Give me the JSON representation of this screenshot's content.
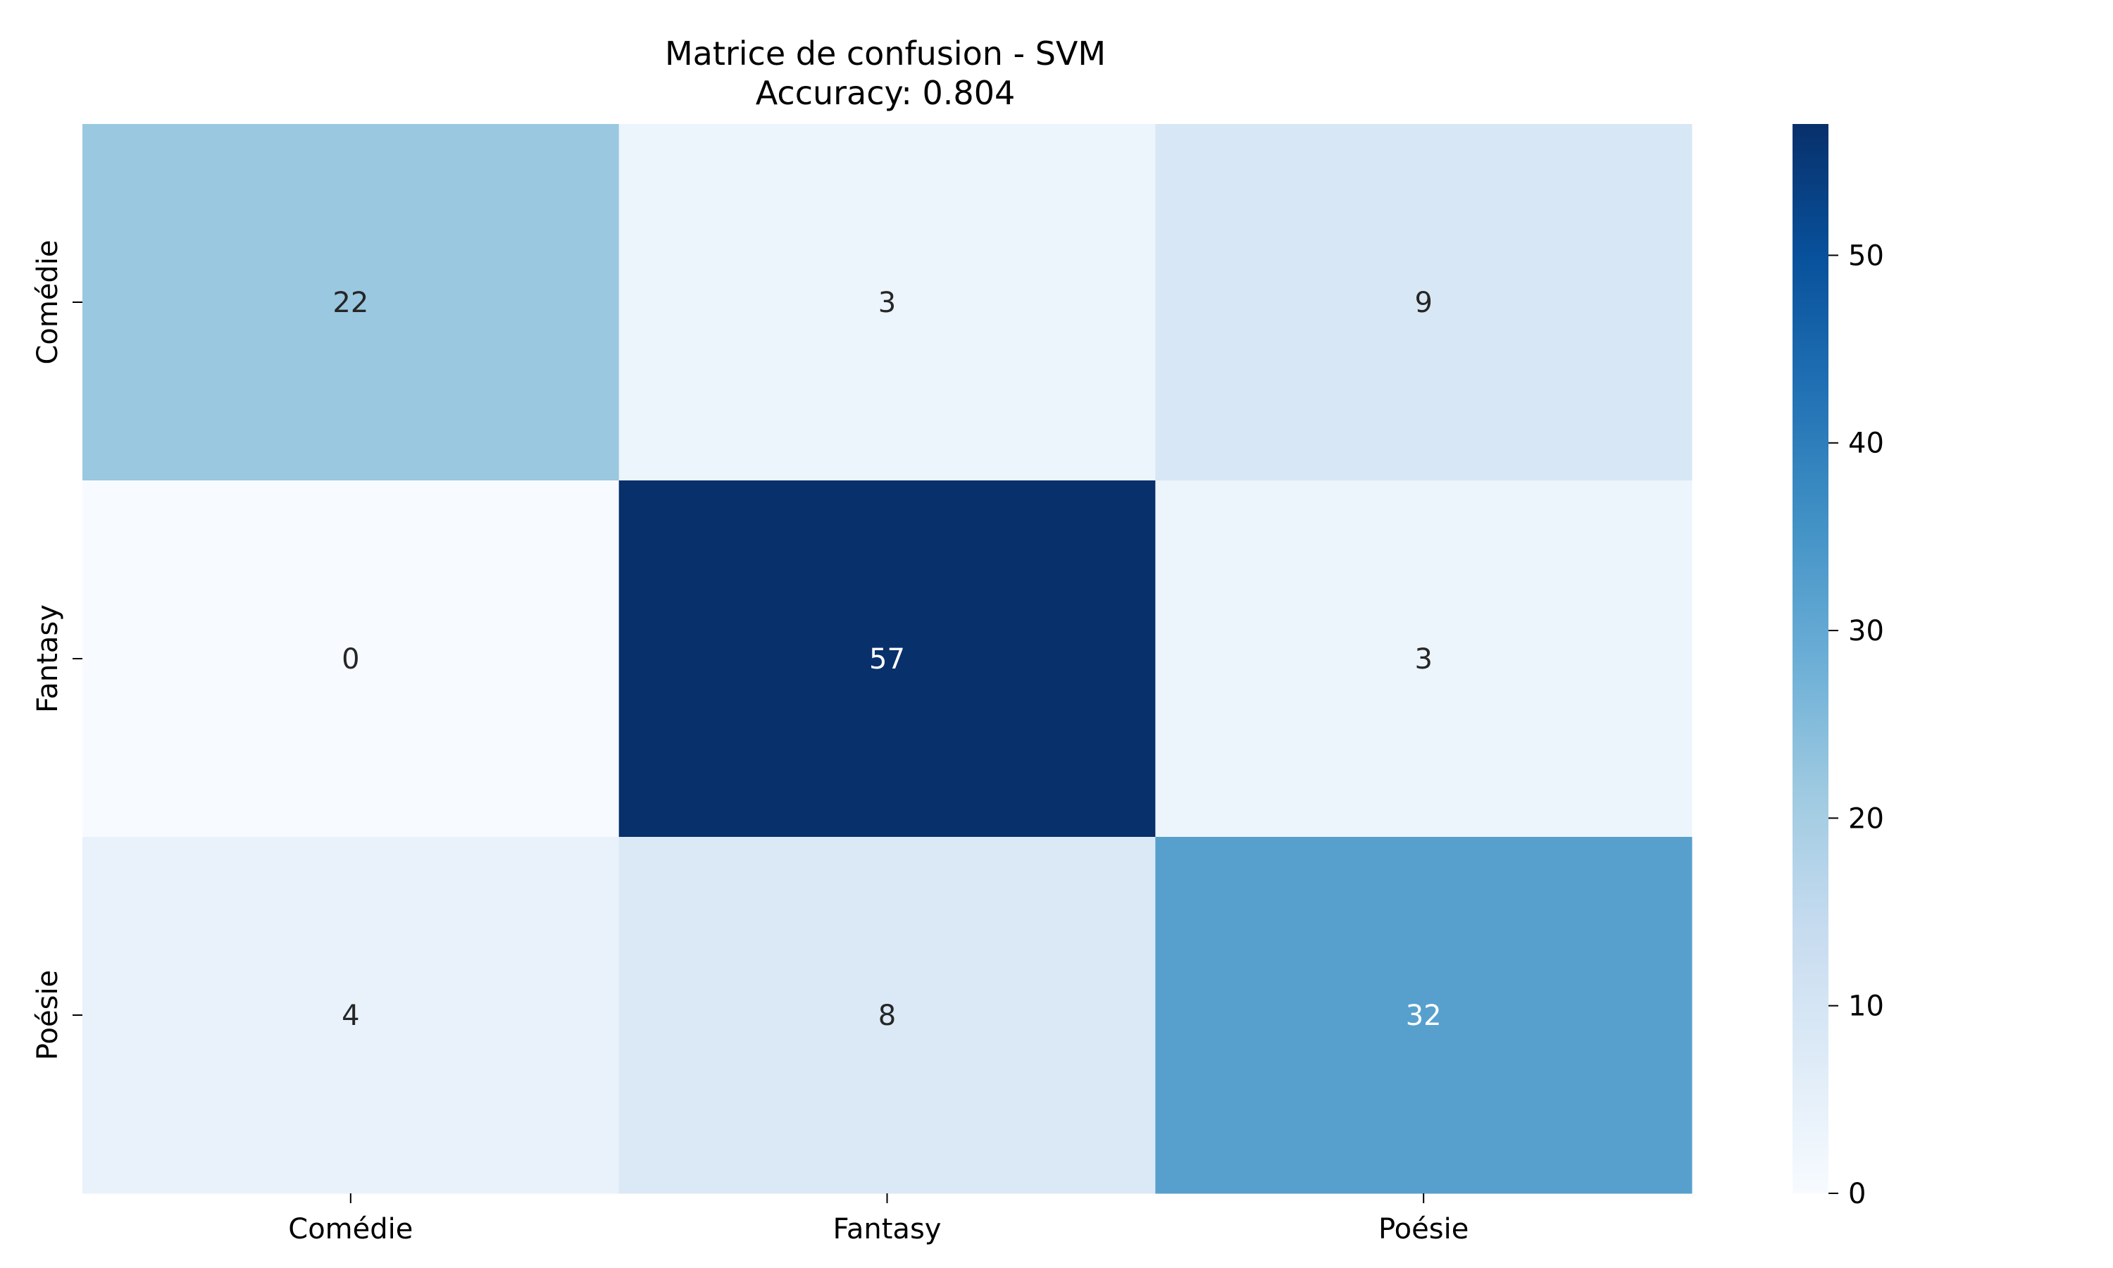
{
  "chart_data": {
    "type": "heatmap",
    "title": "Matrice de confusion - SVM",
    "subtitle": "Accuracy: 0.804",
    "xlabel": "",
    "ylabel": "",
    "x_categories": [
      "Comédie",
      "Fantasy",
      "Poésie"
    ],
    "y_categories": [
      "Comédie",
      "Fantasy",
      "Poésie"
    ],
    "values": [
      [
        22,
        3,
        9
      ],
      [
        0,
        57,
        3
      ],
      [
        4,
        8,
        32
      ]
    ],
    "colormap": "Blues",
    "colorbar": {
      "range": [
        0,
        57
      ],
      "ticks": [
        0,
        10,
        20,
        30,
        40,
        50
      ],
      "tick_labels": [
        "0",
        "10",
        "20",
        "30",
        "40",
        "50"
      ]
    },
    "colors": {
      "low": "#f7fbff",
      "high": "#08306b",
      "text_dark": "#262626",
      "text_light": "#ffffff"
    },
    "grid": false
  }
}
